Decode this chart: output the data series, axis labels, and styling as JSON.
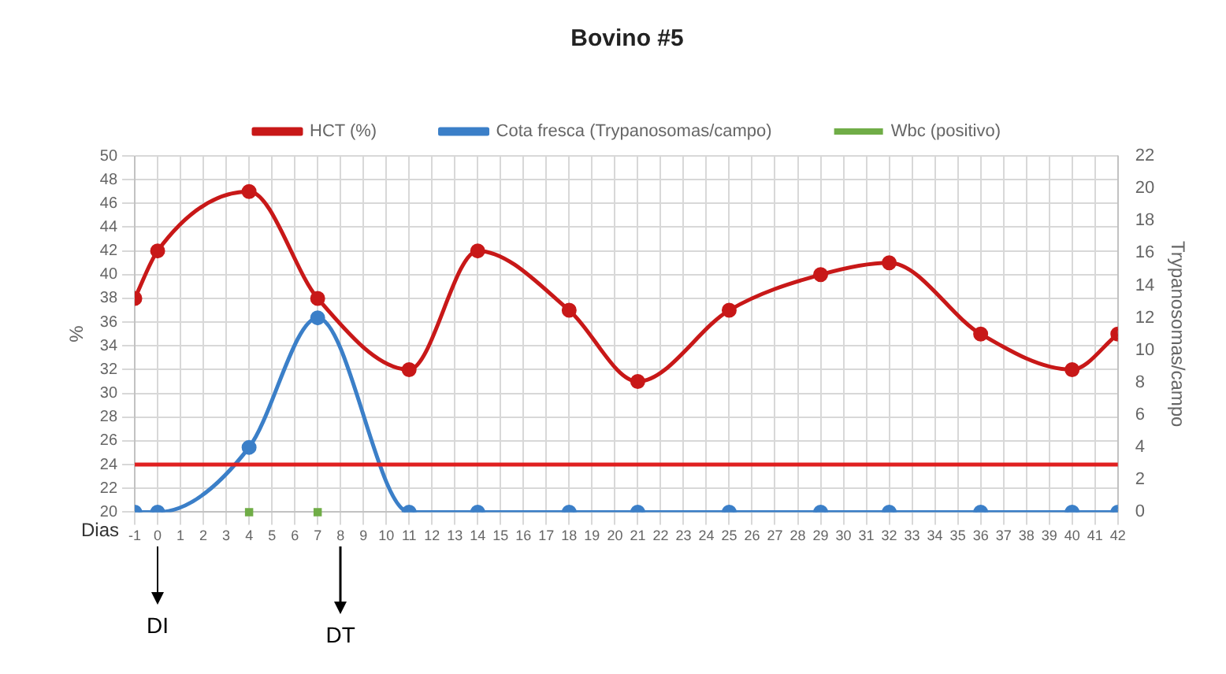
{
  "chart_data": {
    "type": "line",
    "title": "Bovino #5",
    "xlabel": "Dias",
    "ylabel": "%",
    "y2label": "Trypanosomas/campo",
    "xlim": [
      -1,
      42
    ],
    "xticks": [
      -1,
      0,
      1,
      2,
      3,
      4,
      5,
      6,
      7,
      8,
      9,
      10,
      11,
      12,
      13,
      14,
      15,
      16,
      17,
      18,
      19,
      20,
      21,
      22,
      23,
      24,
      25,
      26,
      27,
      28,
      29,
      30,
      31,
      32,
      33,
      34,
      35,
      36,
      37,
      38,
      39,
      40,
      41,
      42
    ],
    "ylim": [
      20,
      50
    ],
    "yticks": [
      20,
      22,
      24,
      26,
      28,
      30,
      32,
      34,
      36,
      38,
      40,
      42,
      44,
      46,
      48,
      50
    ],
    "y2lim": [
      0,
      22
    ],
    "y2ticks": [
      0,
      2,
      4,
      6,
      8,
      10,
      12,
      14,
      16,
      18,
      20,
      22
    ],
    "series": [
      {
        "name": "HCT (%)",
        "color": "#c81818",
        "x": [
          -1,
          0,
          4,
          7,
          11,
          14,
          18,
          21,
          25,
          29,
          32,
          36,
          40,
          42
        ],
        "values": [
          38,
          42,
          47,
          38,
          32,
          42,
          37,
          31,
          37,
          40,
          41,
          35,
          32,
          35
        ]
      },
      {
        "name": "Cota fresca (Trypanosomas/campo)",
        "color": "#3b7fc8",
        "axis": "y2",
        "x": [
          -1,
          0,
          4,
          7,
          11,
          14,
          18,
          21,
          25,
          29,
          32,
          36,
          40,
          42
        ],
        "values": [
          0,
          0,
          4,
          12,
          0,
          0,
          0,
          0,
          0,
          0,
          0,
          0,
          0,
          0
        ]
      },
      {
        "name": "Wbc (positivo)",
        "color": "#70ad47",
        "type": "scatter",
        "marker": "square",
        "x": [
          4,
          7
        ],
        "values": [
          20,
          20
        ]
      }
    ],
    "ref_lines": [
      {
        "axis": "y",
        "value": 24,
        "color": "#e02020"
      }
    ],
    "annotations": [
      "DI",
      "DT"
    ],
    "grid": true,
    "legend": "top",
    "marker": "circle",
    "line_style": "solid"
  }
}
